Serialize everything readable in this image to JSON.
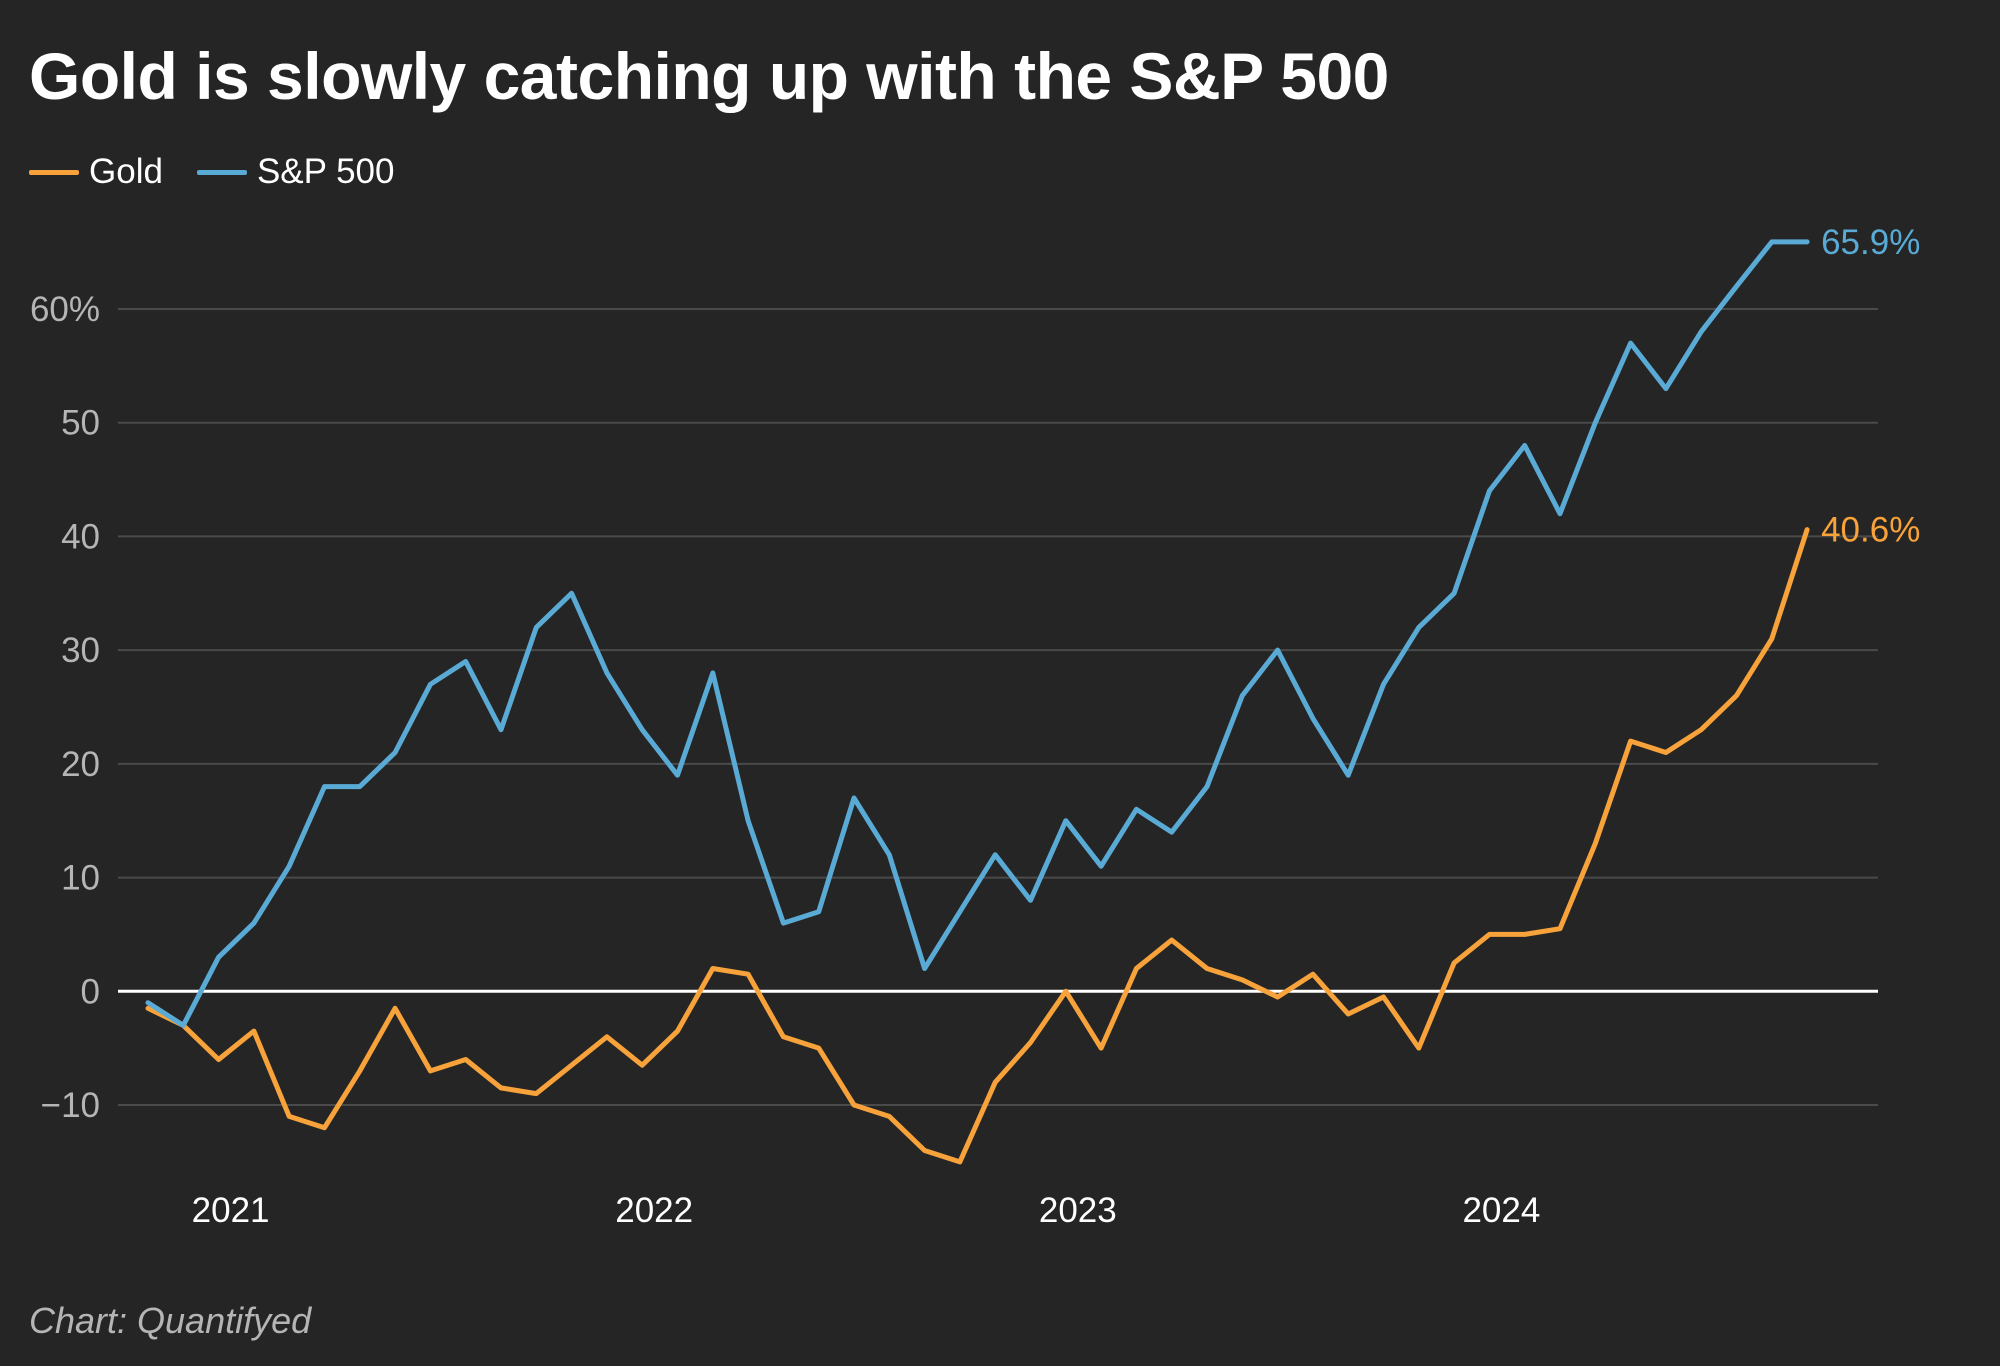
{
  "title": "Gold is slowly catching up with the S&P 500",
  "source": "Chart: Quantifyed",
  "colors": {
    "gold": "#f7a23a",
    "sp500": "#5aaad6",
    "zero_line": "#ffffff",
    "grid": "#4a4a4a",
    "tick": "#b5b5b5",
    "background": "#252525"
  },
  "chart_data": {
    "type": "line",
    "title": "Gold is slowly catching up with the S&P 500",
    "xlabel": "",
    "ylabel": "",
    "x_ticks": [
      "2021",
      "2022",
      "2023",
      "2024"
    ],
    "y_ticks": [
      "60%",
      "50",
      "40",
      "30",
      "20",
      "10",
      "0",
      "−10"
    ],
    "ylim": [
      -15.5,
      66
    ],
    "xlim": [
      "2020-11",
      "2024-10"
    ],
    "grid": true,
    "legend": "top-left",
    "series": [
      {
        "name": "Gold",
        "color": "#f7a23a",
        "end_label": "40.6%",
        "x": [
          "2020-11",
          "2020-12",
          "2021-01",
          "2021-02",
          "2021-03",
          "2021-04",
          "2021-05",
          "2021-06",
          "2021-07",
          "2021-08",
          "2021-09",
          "2021-10",
          "2021-11",
          "2021-12",
          "2022-01",
          "2022-02",
          "2022-03",
          "2022-04",
          "2022-05",
          "2022-06",
          "2022-07",
          "2022-08",
          "2022-09",
          "2022-10",
          "2022-11",
          "2022-12",
          "2023-01",
          "2023-02",
          "2023-03",
          "2023-04",
          "2023-05",
          "2023-06",
          "2023-07",
          "2023-08",
          "2023-09",
          "2023-10",
          "2023-11",
          "2023-12",
          "2024-01",
          "2024-02",
          "2024-03",
          "2024-04",
          "2024-05",
          "2024-06",
          "2024-07",
          "2024-08",
          "2024-09",
          "2024-10"
        ],
        "values": [
          -1.5,
          -3,
          -6,
          -3.5,
          -11,
          -12,
          -7,
          -1.5,
          -7,
          -6,
          -8.5,
          -9,
          -6.5,
          -4,
          -6.5,
          -3.5,
          2,
          1.5,
          -4,
          -5,
          -10,
          -11,
          -14,
          -15,
          -8,
          -4.5,
          0,
          -5,
          2,
          4.5,
          2,
          1,
          -0.5,
          1.5,
          -2,
          -0.5,
          -5,
          2.5,
          5,
          5,
          5.5,
          13,
          22,
          21,
          23,
          26,
          31,
          40.6
        ]
      },
      {
        "name": "S&P 500",
        "color": "#5aaad6",
        "end_label": "65.9%",
        "x": [
          "2020-11",
          "2020-12",
          "2021-01",
          "2021-02",
          "2021-03",
          "2021-04",
          "2021-05",
          "2021-06",
          "2021-07",
          "2021-08",
          "2021-09",
          "2021-10",
          "2021-11",
          "2021-12",
          "2022-01",
          "2022-02",
          "2022-03",
          "2022-04",
          "2022-05",
          "2022-06",
          "2022-07",
          "2022-08",
          "2022-09",
          "2022-10",
          "2022-11",
          "2022-12",
          "2023-01",
          "2023-02",
          "2023-03",
          "2023-04",
          "2023-05",
          "2023-06",
          "2023-07",
          "2023-08",
          "2023-09",
          "2023-10",
          "2023-11",
          "2023-12",
          "2024-01",
          "2024-02",
          "2024-03",
          "2024-04",
          "2024-05",
          "2024-06",
          "2024-07",
          "2024-08",
          "2024-09",
          "2024-10"
        ],
        "values": [
          -1,
          -3,
          3,
          6,
          11,
          18,
          18,
          21,
          27,
          29,
          23,
          32,
          35,
          28,
          23,
          19,
          28,
          15,
          6,
          7,
          17,
          12,
          2,
          7,
          12,
          8,
          15,
          11,
          16,
          14,
          18,
          26,
          30,
          24,
          19,
          27,
          32,
          35,
          44,
          48,
          42,
          50,
          57,
          53,
          58,
          62,
          65.9,
          65.9
        ]
      }
    ]
  }
}
